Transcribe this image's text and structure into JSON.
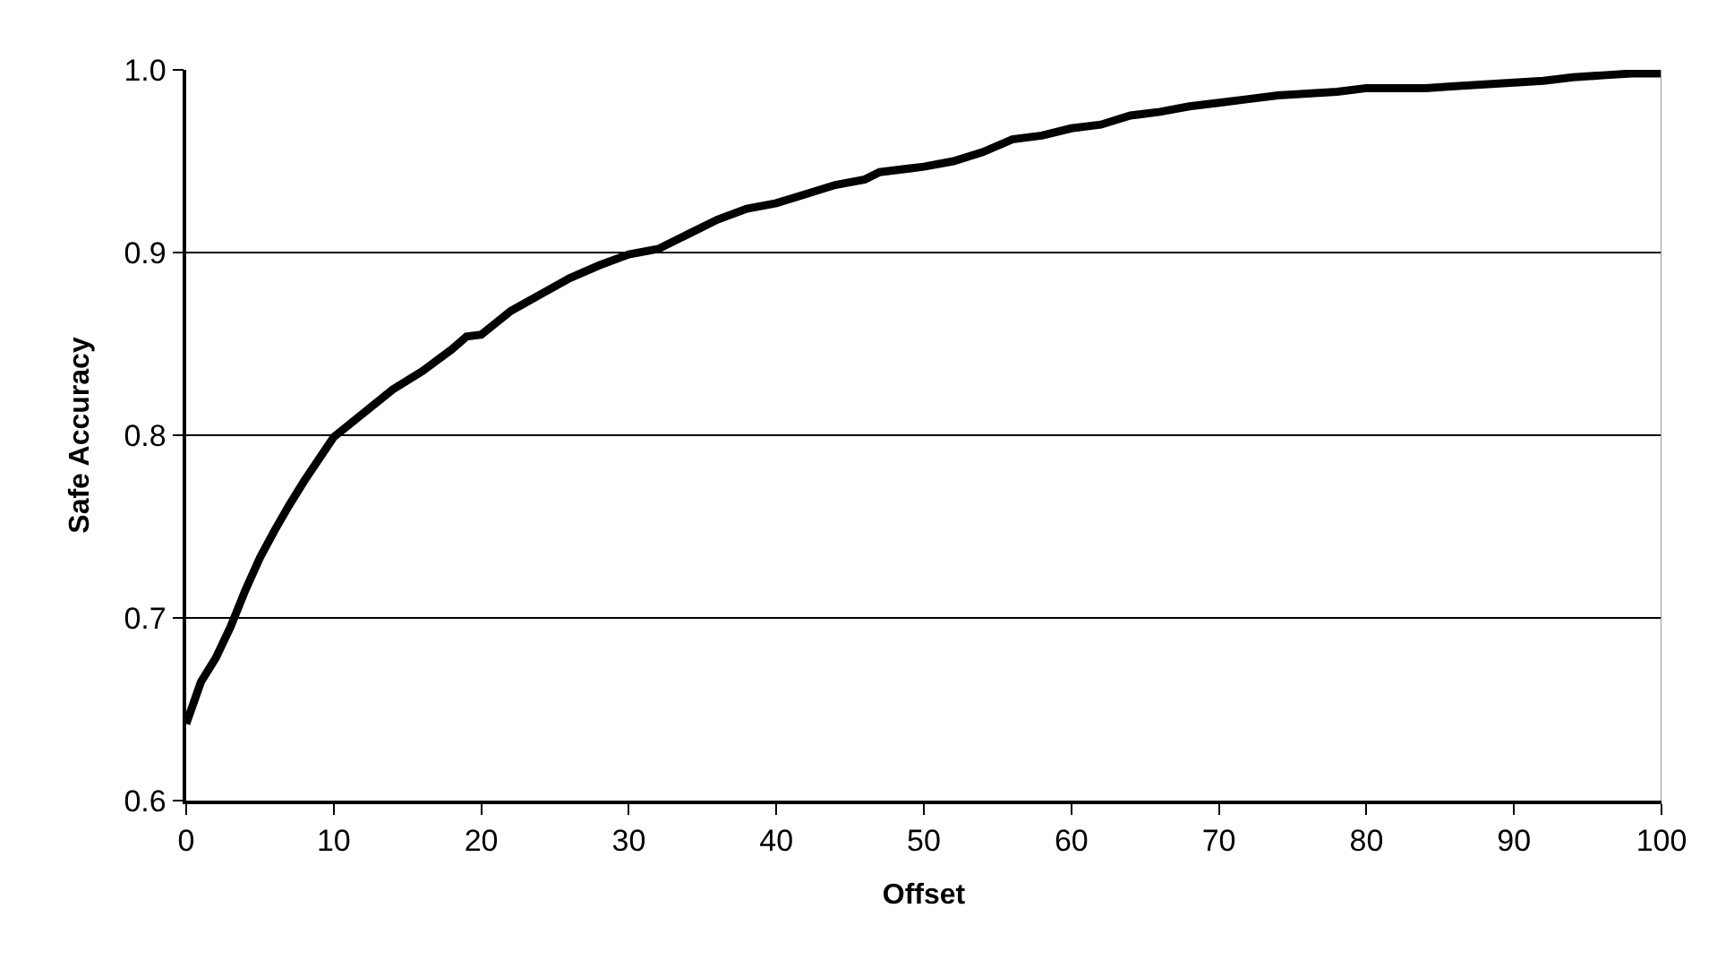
{
  "chart_data": {
    "type": "line",
    "xlabel": "Offset",
    "ylabel": "Safe Accuracy",
    "x": [
      0,
      1,
      2,
      3,
      4,
      5,
      6,
      7,
      8,
      9,
      10,
      12,
      14,
      16,
      18,
      19,
      20,
      22,
      24,
      26,
      28,
      30,
      32,
      34,
      36,
      38,
      40,
      42,
      44,
      46,
      47,
      50,
      52,
      54,
      56,
      58,
      60,
      62,
      64,
      66,
      68,
      70,
      72,
      74,
      76,
      78,
      80,
      84,
      86,
      88,
      90,
      92,
      94,
      96,
      98,
      100
    ],
    "series": [
      {
        "color": "#000000",
        "values": [
          0.642,
          0.665,
          0.678,
          0.695,
          0.715,
          0.733,
          0.748,
          0.762,
          0.775,
          0.787,
          0.799,
          0.812,
          0.825,
          0.835,
          0.847,
          0.854,
          0.855,
          0.868,
          0.877,
          0.886,
          0.893,
          0.899,
          0.902,
          0.91,
          0.918,
          0.924,
          0.927,
          0.932,
          0.937,
          0.94,
          0.944,
          0.947,
          0.95,
          0.955,
          0.962,
          0.964,
          0.968,
          0.97,
          0.975,
          0.977,
          0.98,
          0.982,
          0.984,
          0.986,
          0.987,
          0.988,
          0.99,
          0.99,
          0.991,
          0.992,
          0.993,
          0.994,
          0.996,
          0.997,
          0.998,
          0.998
        ]
      }
    ],
    "xlim": [
      0,
      100
    ],
    "xticks": [
      0,
      10,
      20,
      30,
      40,
      50,
      60,
      70,
      80,
      90,
      100
    ],
    "ylim": [
      0.6,
      1.0
    ],
    "yticks": [
      {
        "value": 0.6,
        "label": "0.6"
      },
      {
        "value": 0.7,
        "label": "0.7"
      },
      {
        "value": 0.8,
        "label": "0.8"
      },
      {
        "value": 0.9,
        "label": "0.9"
      },
      {
        "value": 1.0,
        "label": "1.0"
      }
    ],
    "grid": "y",
    "marker": "none",
    "line_style": "solid"
  }
}
